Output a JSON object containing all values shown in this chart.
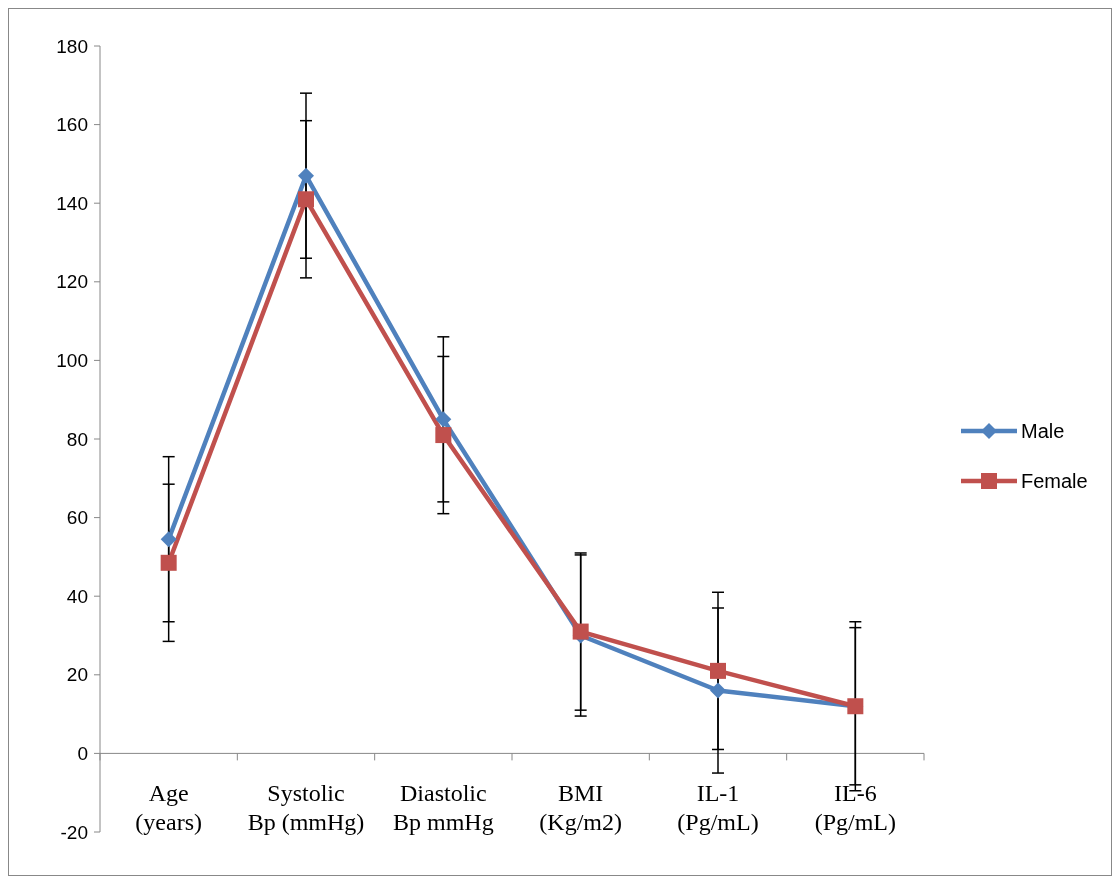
{
  "chart_data": {
    "type": "line",
    "categories": [
      "Age (years)",
      "Systolic Bp (mmHg)",
      "Diastolic Bp mmHg",
      "BMI (Kg/m2)",
      "IL-1 (Pg/mL)",
      "IL-6 (Pg/mL)"
    ],
    "ylim": [
      -20,
      180
    ],
    "yticks": [
      -20,
      0,
      20,
      40,
      60,
      80,
      100,
      120,
      140,
      160,
      180
    ],
    "grid": false,
    "legend": "right",
    "series": [
      {
        "name": "Male",
        "color": "#4f81bd",
        "marker": "diamond",
        "values": [
          54.5,
          147,
          85,
          30,
          16,
          12
        ],
        "errors": [
          21,
          21,
          21,
          20.5,
          21,
          21.5
        ]
      },
      {
        "name": "Female",
        "color": "#c0504d",
        "marker": "square",
        "values": [
          48.5,
          141,
          81,
          31,
          21,
          12
        ],
        "errors": [
          20,
          20,
          20,
          20,
          20,
          20
        ]
      }
    ]
  }
}
